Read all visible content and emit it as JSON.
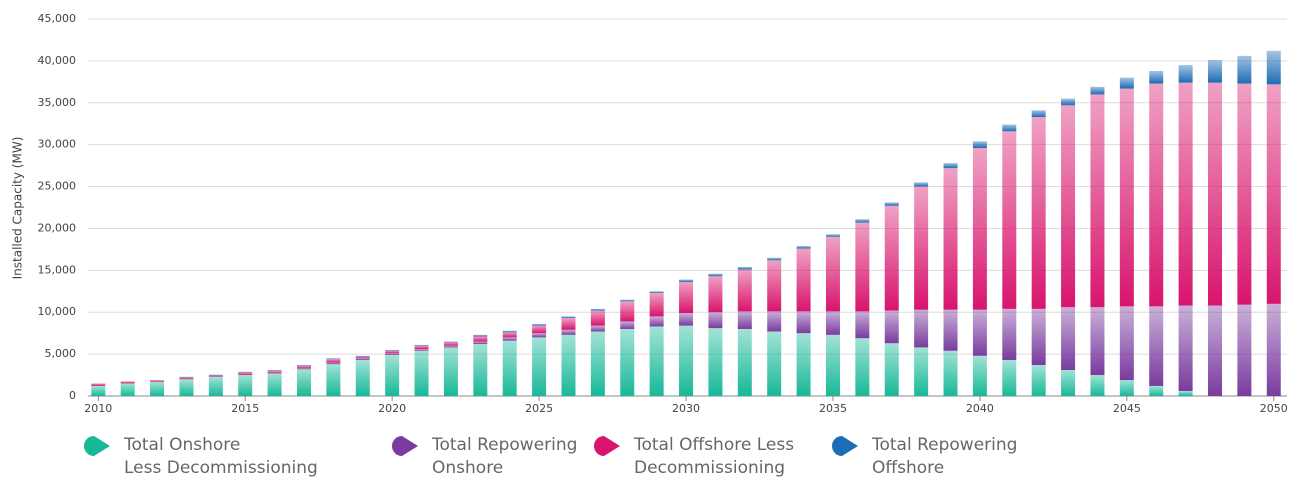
{
  "chart_data": {
    "type": "stacked-bar",
    "y_label": "Installed Capacity (MW)",
    "x": [
      2010,
      2011,
      2012,
      2013,
      2014,
      2015,
      2016,
      2017,
      2018,
      2019,
      2020,
      2021,
      2022,
      2023,
      2024,
      2025,
      2026,
      2027,
      2028,
      2029,
      2030,
      2031,
      2032,
      2033,
      2034,
      2035,
      2036,
      2037,
      2038,
      2039,
      2040,
      2041,
      2042,
      2043,
      2044,
      2045,
      2046,
      2047,
      2048,
      2049,
      2050
    ],
    "xlim": [
      2009.65,
      2050.45
    ],
    "xticks": [
      2010,
      2015,
      2020,
      2025,
      2030,
      2035,
      2040,
      2045,
      2050
    ],
    "ylim": [
      0,
      45000
    ],
    "yticks": [
      0,
      {
        "value": 5000,
        "label": "5,000"
      },
      {
        "value": 10000,
        "label": "10,000"
      },
      {
        "value": 15000,
        "label": "15,000"
      },
      {
        "value": 20000,
        "label": "20,000"
      },
      {
        "value": 25000,
        "label": "25,000"
      },
      {
        "value": 30000,
        "label": "30,000"
      },
      {
        "value": 35000,
        "label": "35,000"
      },
      {
        "value": 40000,
        "label": "40,000"
      },
      {
        "value": 45000,
        "label": "45,000"
      }
    ],
    "grid": true,
    "series": [
      {
        "name": "Total Onshore\nLess Decommissioning",
        "color": "#17b898",
        "values": [
          1200,
          1500,
          1700,
          2000,
          2300,
          2500,
          2700,
          3200,
          3800,
          4300,
          4900,
          5400,
          5800,
          6200,
          6600,
          7000,
          7300,
          7700,
          8000,
          8300,
          8400,
          8100,
          8000,
          7700,
          7500,
          7300,
          6900,
          6300,
          5800,
          5400,
          4800,
          4300,
          3700,
          3100,
          2500,
          1900,
          1200,
          600,
          0,
          0,
          0
        ]
      },
      {
        "name": "Total Repowering\nOnshore",
        "color": "#7a3b9e",
        "values": [
          0,
          0,
          0,
          0,
          0,
          0,
          0,
          100,
          200,
          200,
          200,
          200,
          200,
          300,
          400,
          500,
          600,
          700,
          900,
          1200,
          1500,
          1900,
          2100,
          2400,
          2600,
          2800,
          3200,
          3900,
          4500,
          4900,
          5500,
          6100,
          6700,
          7500,
          8100,
          8800,
          9500,
          10200,
          10800,
          10900,
          11000
        ]
      },
      {
        "name": "Total Offshore Less\nDecommissioning",
        "color": "#d8146c",
        "values": [
          300,
          250,
          200,
          200,
          150,
          300,
          300,
          300,
          400,
          200,
          300,
          400,
          400,
          600,
          600,
          900,
          1400,
          1800,
          2400,
          2800,
          3700,
          4300,
          5000,
          6100,
          7500,
          8900,
          10600,
          12500,
          14700,
          16900,
          19300,
          21200,
          22900,
          24100,
          25400,
          26000,
          26600,
          26600,
          26600,
          26400,
          26200
        ]
      },
      {
        "name": "Total Repowering\nOffshore",
        "color": "#1c6cb6",
        "values": [
          0,
          0,
          0,
          100,
          100,
          100,
          100,
          100,
          100,
          100,
          100,
          100,
          100,
          200,
          200,
          200,
          200,
          200,
          200,
          200,
          300,
          300,
          300,
          300,
          300,
          300,
          400,
          400,
          500,
          600,
          800,
          800,
          800,
          800,
          900,
          1300,
          1500,
          2100,
          2700,
          3300,
          4000
        ]
      }
    ]
  }
}
